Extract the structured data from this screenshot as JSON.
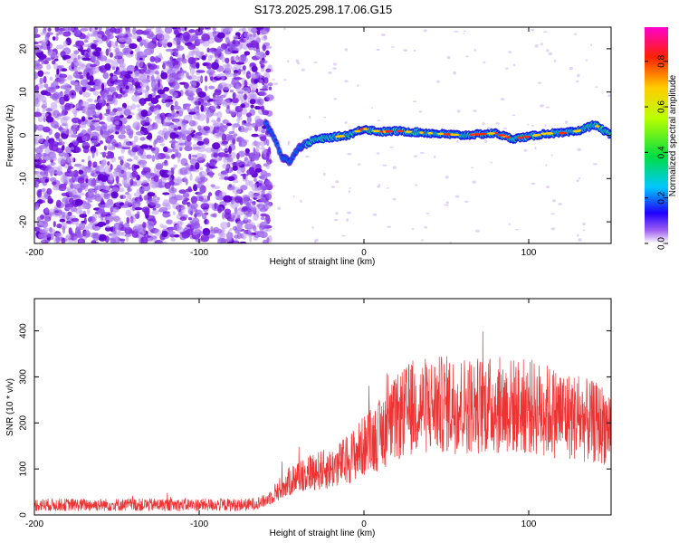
{
  "title": "S173.2025.298.17.06.G15",
  "chart_data": [
    {
      "type": "heatmap",
      "name": "spectrogram",
      "xlabel": "Height of straight line (km)",
      "ylabel": "Frequency (Hz)",
      "xlim": [
        -200,
        150
      ],
      "ylim": [
        -25,
        25
      ],
      "xticks": [
        -200,
        -100,
        0,
        100
      ],
      "yticks": [
        -20,
        -10,
        0,
        10,
        20
      ],
      "noise_region_x": [
        -200,
        -60
      ],
      "signal_track": {
        "x": [
          -60,
          -55,
          -50,
          -45,
          -40,
          -35,
          -30,
          -20,
          -10,
          0,
          10,
          20,
          40,
          60,
          80,
          90,
          100,
          110,
          120,
          130,
          140,
          150
        ],
        "freq": [
          3,
          0,
          -5,
          -6,
          -3,
          -2,
          -1,
          -0.5,
          0,
          1.5,
          0.8,
          1,
          0.5,
          0,
          0.5,
          -0.8,
          -0.3,
          0.4,
          0.5,
          1,
          2.5,
          0
        ]
      },
      "colorbar": {
        "label": "Normalized spectral amplitude",
        "range": [
          0.0,
          0.95
        ],
        "ticks": [
          0.0,
          0.2,
          0.4,
          0.6,
          0.8
        ],
        "tick_labels": [
          "0.0",
          "0.2",
          "0.4",
          "0.6",
          "0.8"
        ]
      }
    },
    {
      "type": "line",
      "name": "snr",
      "xlabel": "Height of straight line (km)",
      "ylabel": "SNR (10 * v/v)",
      "xlim": [
        -200,
        150
      ],
      "ylim": [
        0,
        470
      ],
      "xticks": [
        -200,
        -100,
        0,
        100
      ],
      "yticks": [
        0,
        100,
        200,
        300,
        400
      ],
      "color": "#ee3333",
      "trend": {
        "x": [
          -200,
          -150,
          -100,
          -70,
          -60,
          -50,
          -40,
          -30,
          -20,
          -10,
          0,
          10,
          20,
          30,
          50,
          80,
          100,
          120,
          140,
          150
        ],
        "y": [
          22,
          22,
          22,
          22,
          30,
          60,
          85,
          95,
          100,
          120,
          150,
          175,
          210,
          235,
          240,
          238,
          235,
          220,
          200,
          195
        ]
      }
    }
  ]
}
